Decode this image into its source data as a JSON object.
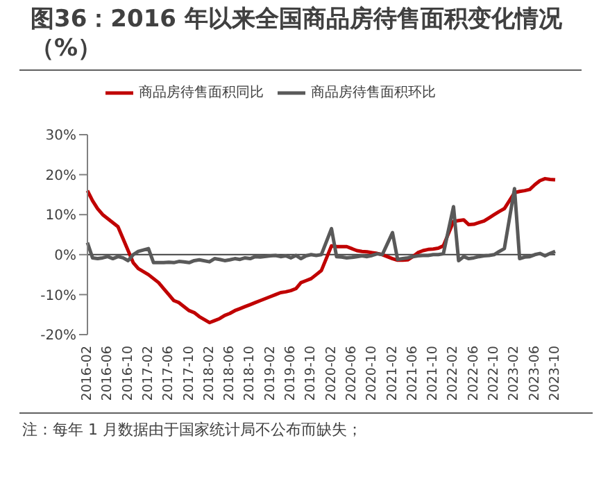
{
  "chart_data": {
    "type": "line",
    "title": "图36：2016 年以来全国商品房待售面积变化情况（%）",
    "annotations": [
      "注：每年 1 月数据由于国家统计局不公布而缺失；"
    ],
    "categories": [
      "2016-02",
      null,
      null,
      null,
      "2016-06",
      null,
      null,
      null,
      "2016-10",
      null,
      null,
      null,
      "2017-02",
      null,
      null,
      null,
      "2017-06",
      null,
      null,
      null,
      "2017-10",
      null,
      null,
      null,
      "2018-02",
      null,
      null,
      null,
      "2018-06",
      null,
      null,
      null,
      "2018-10",
      null,
      null,
      null,
      "2019-02",
      null,
      null,
      null,
      "2019-06",
      null,
      null,
      null,
      "2019-10",
      null,
      null,
      null,
      "2020-02",
      null,
      null,
      null,
      "2020-06",
      null,
      null,
      null,
      "2020-10",
      null,
      null,
      null,
      "2021-02",
      null,
      null,
      null,
      "2021-06",
      null,
      null,
      null,
      "2021-10",
      null,
      null,
      null,
      "2022-02",
      null,
      null,
      null,
      "2022-06",
      null,
      null,
      null,
      "2022-10",
      null,
      null,
      null,
      "2023-02",
      null,
      null,
      null,
      "2023-06",
      null,
      null,
      null,
      "2023-10"
    ],
    "series": [
      {
        "name": "商品房待售面积同比",
        "color": "#c00000",
        "values": [
          16,
          13.5,
          11.5,
          10,
          9,
          8,
          7,
          4,
          1,
          -2,
          -3.5,
          null,
          -5,
          -6,
          -7,
          -8.5,
          -10,
          -11.5,
          -12,
          -13,
          -14,
          -14.5,
          -15.5,
          null,
          -17,
          -16.5,
          -16,
          -15.2,
          -14.7,
          -14,
          -13.5,
          -13,
          -12.5,
          -12,
          -11.5,
          null,
          -10.5,
          -10,
          -9.5,
          -9.3,
          -9,
          -8.5,
          -7,
          -6.5,
          -6,
          -5,
          -4,
          null,
          2.2,
          2,
          2,
          2,
          1.5,
          1,
          0.8,
          0.7,
          0.5,
          0.3,
          0,
          null,
          -1,
          -1.4,
          -1.4,
          -1.3,
          -0.5,
          0.5,
          1,
          1.3,
          1.4,
          1.6,
          2.2,
          null,
          8.3,
          8.5,
          8.7,
          7.5,
          7.6,
          8,
          8.4,
          9.2,
          10,
          10.8,
          11.5,
          null,
          15.5,
          15.8,
          16,
          16.3,
          17.5,
          18.5,
          19,
          18.8,
          18.7
        ]
      },
      {
        "name": "商品房待售面积环比",
        "color": "#595959",
        "values": [
          3,
          -0.8,
          -1,
          -0.8,
          -0.5,
          -1,
          -0.5,
          -0.8,
          -1.5,
          0,
          0.8,
          null,
          1.5,
          -2,
          -2,
          -2,
          -1.9,
          -2,
          -1.7,
          -1.8,
          -2,
          -1.5,
          -1.3,
          null,
          -1.8,
          -1,
          -1.2,
          -1.5,
          -1.3,
          -1,
          -1.2,
          -0.8,
          -1,
          -0.5,
          -0.6,
          null,
          -0.3,
          -0.2,
          -0.5,
          -0.3,
          -0.8,
          -0.2,
          -1,
          -0.3,
          0,
          -0.2,
          0,
          null,
          6.5,
          -0.5,
          -0.6,
          -0.8,
          -0.7,
          -0.5,
          -0.3,
          -0.5,
          -0.2,
          0.2,
          0,
          null,
          5.5,
          -1.2,
          -1,
          -0.8,
          -0.5,
          -0.3,
          -0.2,
          -0.2,
          0,
          0,
          0.2,
          null,
          12,
          -1.5,
          -0.5,
          -1,
          -0.8,
          -0.5,
          -0.3,
          -0.2,
          0,
          0.8,
          1.5,
          null,
          16.5,
          -1,
          -0.6,
          -0.5,
          0,
          0.3,
          -0.3,
          0.3,
          0.8
        ]
      }
    ],
    "ylim": [
      -20,
      30
    ],
    "yticks": [
      {
        "value": -20,
        "label": "-20%"
      },
      {
        "value": -10,
        "label": "-10%"
      },
      {
        "value": 0,
        "label": "0%"
      },
      {
        "value": 10,
        "label": "10%"
      },
      {
        "value": 20,
        "label": "20%"
      },
      {
        "value": 30,
        "label": "30%"
      }
    ],
    "ref_lines": [
      {
        "axis": "y",
        "value": 0,
        "color": "#404040"
      }
    ],
    "legend": "top",
    "grid": false,
    "marker": "none",
    "line_style": "solid"
  }
}
